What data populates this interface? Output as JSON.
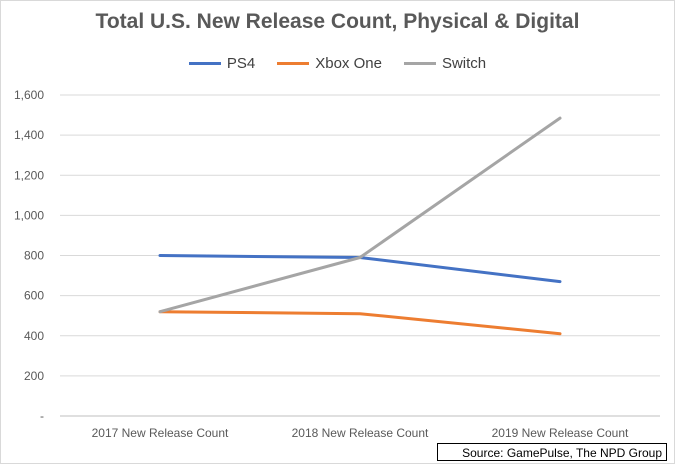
{
  "chart_data": {
    "type": "line",
    "title": "Total U.S. New Release Count, Physical & Digital",
    "categories": [
      "2017 New Release Count",
      "2018 New Release Count",
      "2019 New Release Count"
    ],
    "series": [
      {
        "name": "PS4",
        "color": "#4472c4",
        "values": [
          800,
          790,
          670
        ]
      },
      {
        "name": "Xbox One",
        "color": "#ed7d31",
        "values": [
          520,
          510,
          410
        ]
      },
      {
        "name": "Switch",
        "color": "#a5a5a5",
        "values": [
          520,
          790,
          1485
        ]
      }
    ],
    "ylim": [
      0,
      1600
    ],
    "yticks": [
      "-",
      "200",
      "400",
      "600",
      "800",
      "1,000",
      "1,200",
      "1,400",
      "1,600"
    ],
    "grid": true,
    "legend_position": "top",
    "source": "Source: GamePulse, The NPD Group"
  }
}
